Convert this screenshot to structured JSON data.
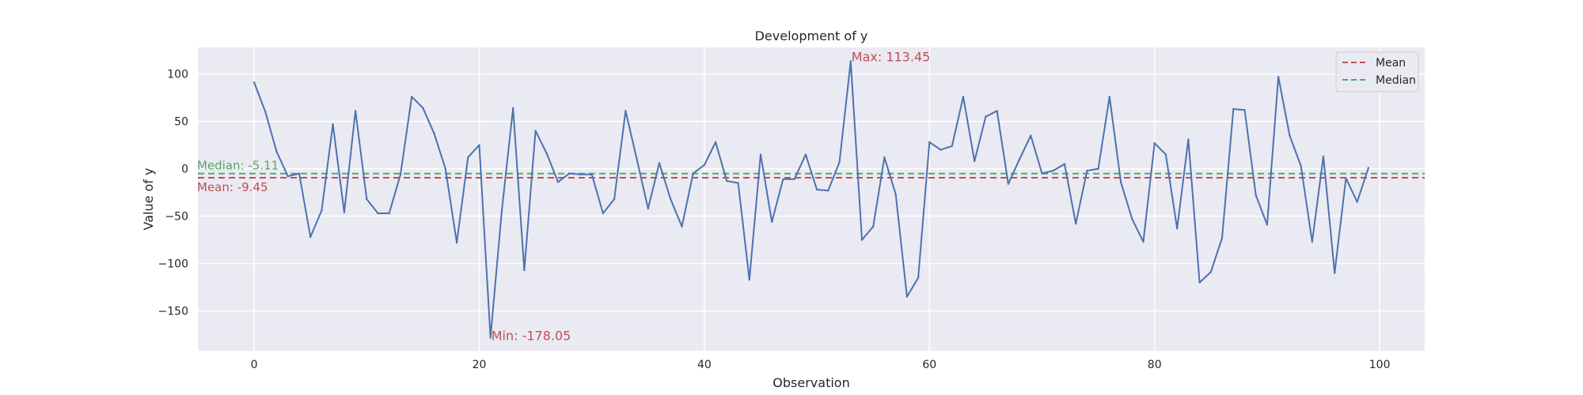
{
  "chart_data": {
    "type": "line",
    "title": "Development of y",
    "xlabel": "Observation",
    "ylabel": "Value of y",
    "xlim": [
      -5,
      104
    ],
    "ylim": [
      -192,
      128
    ],
    "xticks": [
      0,
      20,
      40,
      60,
      80,
      100
    ],
    "yticks": [
      -150,
      -100,
      -50,
      0,
      50,
      100
    ],
    "grid": true,
    "legend_position": "top-right",
    "x": [
      0,
      1,
      2,
      3,
      4,
      5,
      6,
      7,
      8,
      9,
      10,
      11,
      12,
      13,
      14,
      15,
      16,
      17,
      18,
      19,
      20,
      21,
      22,
      23,
      24,
      25,
      26,
      27,
      28,
      29,
      30,
      31,
      32,
      33,
      34,
      35,
      36,
      37,
      38,
      39,
      40,
      41,
      42,
      43,
      44,
      45,
      46,
      47,
      48,
      49,
      50,
      51,
      52,
      53,
      54,
      55,
      56,
      57,
      58,
      59,
      60,
      61,
      62,
      63,
      64,
      65,
      66,
      67,
      68,
      69,
      70,
      71,
      72,
      73,
      74,
      75,
      76,
      77,
      78,
      79,
      80,
      81,
      82,
      83,
      84,
      85,
      86,
      87,
      88,
      89,
      90,
      91,
      92,
      93,
      94,
      95,
      96,
      97,
      98,
      99
    ],
    "series": [
      {
        "color": "#4c72b0",
        "values": [
          91,
          60,
          18,
          -8,
          -5,
          -72,
          -44,
          47,
          -46,
          61,
          -32,
          -47,
          -47,
          -6,
          76,
          64,
          37,
          0,
          -78,
          12,
          25,
          -178.05,
          -45,
          64,
          -107,
          40,
          16,
          -14,
          -5,
          -6,
          -6,
          -47,
          -32,
          61,
          10,
          -42,
          6,
          -32,
          -61,
          -5,
          4,
          28,
          -13,
          -15,
          -117,
          15,
          -56,
          -11,
          -11,
          15,
          -22,
          -23,
          7,
          113.45,
          -75,
          -61,
          12,
          -27,
          -135,
          -115,
          28,
          20,
          24,
          76,
          8,
          55,
          61,
          -16,
          10,
          35,
          -5,
          -2,
          5,
          -58,
          -2,
          0,
          76,
          -14,
          -53,
          -77,
          27,
          15,
          -63,
          31,
          -120,
          -109,
          -73,
          63,
          62,
          -28,
          -59,
          97,
          35,
          3,
          -77,
          13,
          -110,
          -10,
          -35,
          1
        ]
      }
    ],
    "reference_lines": [
      {
        "label": "Mean",
        "value": -9.45,
        "color": "#c44e52",
        "annotation": "Mean: -9.45"
      },
      {
        "label": "Median",
        "value": -5.11,
        "color": "#55a868",
        "annotation": "Median: -5.11"
      }
    ],
    "annotations": [
      {
        "text": "Max: 113.45",
        "x": 53,
        "y": 113.45,
        "color": "#c44e52"
      },
      {
        "text": "Min: -178.05",
        "x": 21,
        "y": -178.05,
        "color": "#c44e52"
      }
    ]
  }
}
